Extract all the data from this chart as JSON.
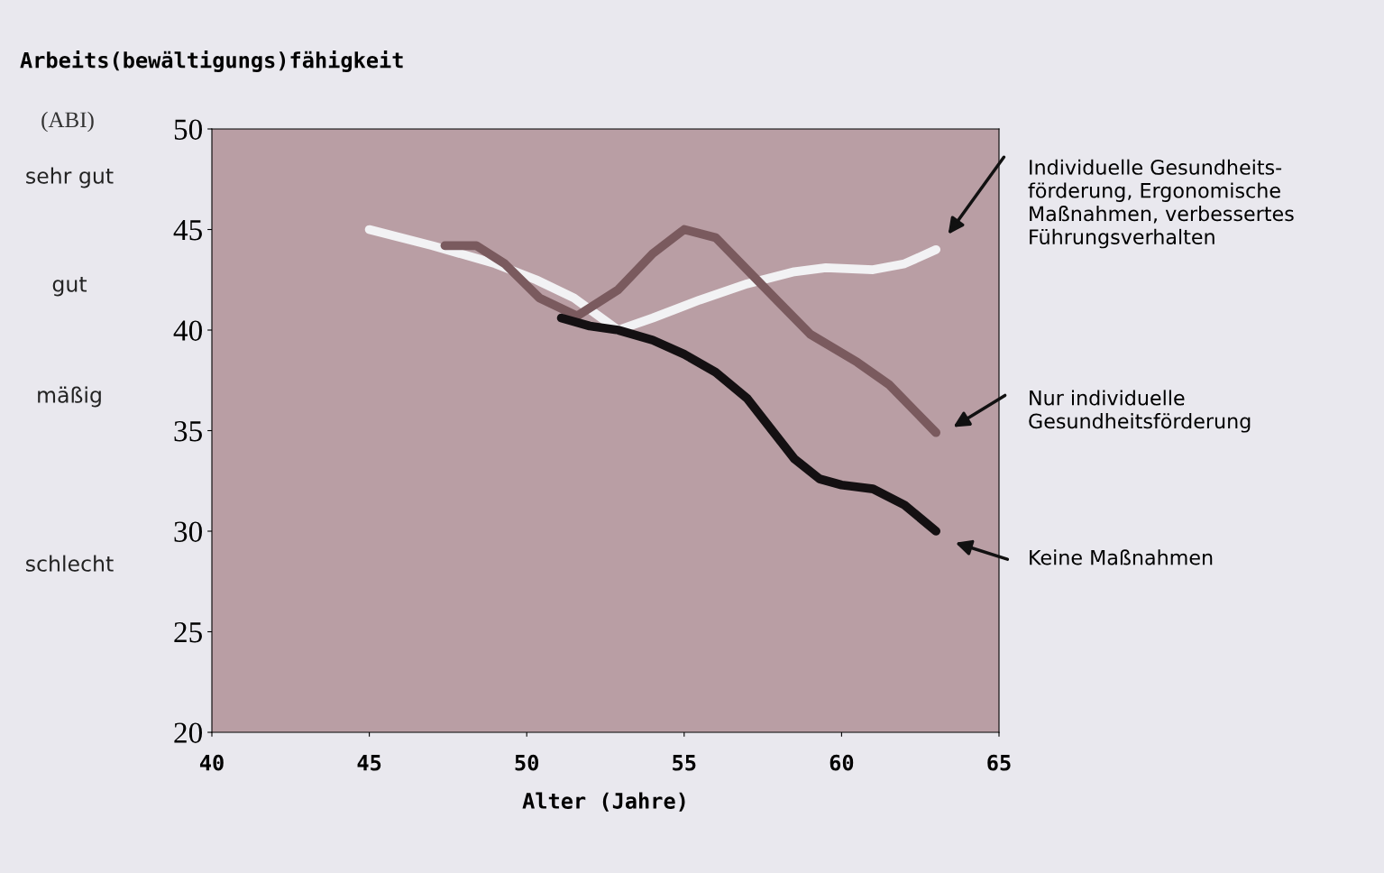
{
  "chart_data": {
    "type": "line",
    "title": "Arbeits(bewältigungs)fähigkeit",
    "xlabel": "Alter (Jahre)",
    "ylabel": "(ABI)",
    "xlim": [
      40,
      65
    ],
    "xticks": [
      40,
      45,
      50,
      55,
      60,
      65
    ],
    "ylim": [
      20,
      50
    ],
    "yticks": [
      20,
      25,
      30,
      35,
      40,
      45,
      50
    ],
    "grid": false,
    "legend": false,
    "marker": "none",
    "line_style": "solid",
    "series": [
      {
        "color": "#f2f2f4",
        "x": [
          45.0,
          47.0,
          49.0,
          50.3,
          51.5,
          52.9,
          54.0,
          55.5,
          57.0,
          58.5,
          59.5,
          61.0,
          62.0,
          63.0
        ],
        "values": [
          45.0,
          44.2,
          43.3,
          42.5,
          41.6,
          40.0,
          40.6,
          41.5,
          42.3,
          42.9,
          43.1,
          43.0,
          43.3,
          44.0
        ]
      },
      {
        "color": "#7a5a5e",
        "x": [
          47.4,
          48.4,
          49.3,
          50.4,
          51.6,
          52.9,
          54.0,
          55.0,
          56.0,
          57.0,
          58.0,
          59.0,
          60.5,
          61.5,
          63.0
        ],
        "values": [
          44.2,
          44.2,
          43.3,
          41.6,
          40.7,
          42.0,
          43.8,
          45.0,
          44.6,
          43.0,
          41.4,
          39.8,
          38.4,
          37.3,
          34.9
        ]
      },
      {
        "color": "#141012",
        "x": [
          51.1,
          52.0,
          52.9,
          54.0,
          55.0,
          56.0,
          57.0,
          57.8,
          58.5,
          59.3,
          60.0,
          61.0,
          62.0,
          63.0
        ],
        "values": [
          40.6,
          40.2,
          40.0,
          39.5,
          38.8,
          37.9,
          36.6,
          35.0,
          33.6,
          32.6,
          32.3,
          32.1,
          31.3,
          30.0
        ]
      }
    ],
    "annotations": [
      "sehr gut",
      "gut",
      "mäßig",
      "schlecht",
      "Individuelle Gesundheits-\nförderung, Ergonomische\nMaßnahmen, verbessertes\nFührungsverhalten",
      "Nur individuelle\nGesundheitsförderung",
      "Keine Maßnahmen"
    ]
  }
}
